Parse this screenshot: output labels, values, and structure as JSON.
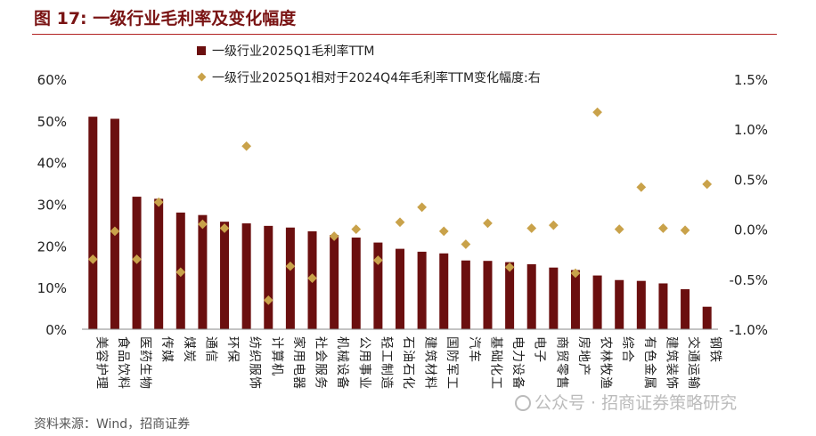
{
  "figure": {
    "title": "图 17:  一级行业毛利率及变化幅度",
    "source": "资料来源：Wind，招商证券",
    "watermark": "公众号 · 招商证券策略研究"
  },
  "colors": {
    "bar": "#6b0f0f",
    "diamond": "#c9a24a",
    "title": "#7a1414",
    "axis": "#888888"
  },
  "chart_data": {
    "type": "bar",
    "categories": [
      "美容护理",
      "食品饮料",
      "医药生物",
      "传媒",
      "煤炭",
      "通信",
      "环保",
      "纺织服饰",
      "计算机",
      "家用电器",
      "社会服务",
      "机械设备",
      "公用事业",
      "轻工制造",
      "石油石化",
      "建筑材料",
      "国防军工",
      "汽车",
      "基础化工",
      "电力设备",
      "电子",
      "商贸零售",
      "房地产",
      "农林牧渔",
      "综合",
      "有色金属",
      "建筑装饰",
      "交通运输",
      "钢铁"
    ],
    "series": [
      {
        "name": "一级行业2025Q1毛利率TTM",
        "type": "bar",
        "axis": "left",
        "values": [
          51.0,
          50.5,
          31.8,
          31.3,
          28.0,
          27.4,
          25.8,
          25.4,
          24.8,
          24.4,
          23.5,
          22.6,
          22.0,
          20.8,
          19.3,
          18.6,
          18.2,
          16.5,
          16.4,
          16.1,
          15.6,
          14.8,
          14.2,
          12.9,
          11.8,
          11.6,
          11.0,
          9.6,
          5.4
        ]
      },
      {
        "name": "一级行业2025Q1相对于2024Q4年毛利率TTM变化幅度:右",
        "type": "scatter",
        "axis": "right",
        "values": [
          -0.3,
          -0.02,
          -0.3,
          0.27,
          -0.43,
          0.05,
          0.01,
          0.83,
          -0.71,
          -0.37,
          -0.49,
          -0.07,
          0.0,
          -0.31,
          0.07,
          0.22,
          -0.02,
          -0.15,
          0.06,
          -0.38,
          0.01,
          0.04,
          -0.44,
          1.17,
          0.0,
          0.42,
          0.01,
          -0.01,
          0.45
        ]
      }
    ],
    "y_left": {
      "min": 0,
      "max": 60,
      "ticks": [
        "0%",
        "10%",
        "20%",
        "30%",
        "40%",
        "50%",
        "60%"
      ]
    },
    "y_right": {
      "min": -1.0,
      "max": 1.5,
      "ticks": [
        "-1.0%",
        "-0.5%",
        "0.0%",
        "0.5%",
        "1.0%",
        "1.5%"
      ]
    },
    "grid": false,
    "legend": "top"
  }
}
